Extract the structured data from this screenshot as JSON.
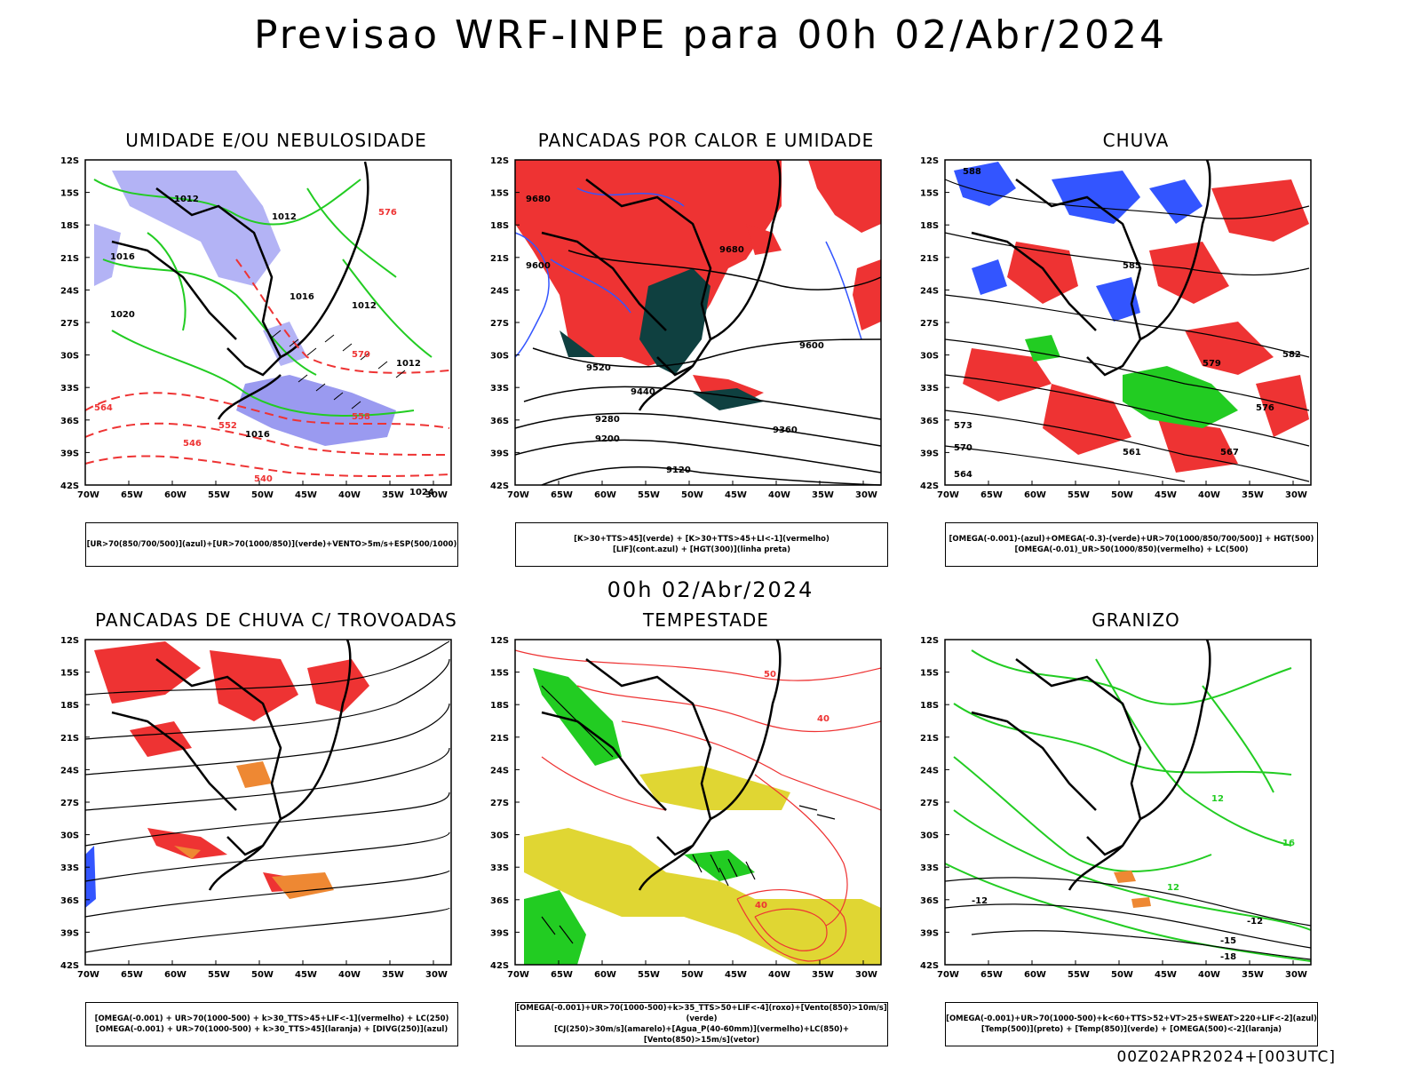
{
  "header": {
    "title": "Previsao WRF-INPE  para 00h 02/Abr/2024"
  },
  "middle_label": "00h 02/Abr/2024",
  "footer": "00Z02APR2024+[003UTC]",
  "axes": {
    "lat_ticks": [
      "12S",
      "15S",
      "18S",
      "21S",
      "24S",
      "27S",
      "30S",
      "33S",
      "36S",
      "39S",
      "42S"
    ],
    "lon_ticks": [
      "70W",
      "65W",
      "60W",
      "55W",
      "50W",
      "45W",
      "40W",
      "35W",
      "30W"
    ]
  },
  "panels": [
    {
      "title": "UMIDADE E/OU NEBULOSIDADE",
      "legend": [
        "[UR>70(850/700/500)](azul)+[UR>70(1000/850)](verde)+VENTO>5m/s+ESP(500/1000)"
      ],
      "labels": [
        "1012",
        "1012",
        "1016",
        "1020",
        "1016",
        "1012",
        "1012",
        "1016",
        "1024",
        "576",
        "570",
        "564",
        "558",
        "552",
        "546",
        "540"
      ]
    },
    {
      "title": "PANCADAS POR CALOR E UMIDADE",
      "legend": [
        "[K>30+TTS>45](verde) + [K>30+TTS>45+LI<-1](vermelho)",
        "[LIF](cont.azul) + [HGT(300)](linha preta)"
      ],
      "labels": [
        "9680",
        "9680",
        "9600",
        "9600",
        "9520",
        "9440",
        "9360",
        "9280",
        "9200",
        "9120"
      ]
    },
    {
      "title": "CHUVA",
      "legend": [
        "[OMEGA(-0.001)-(azul)+OMEGA(-0.3)-(verde)+UR>70(1000/850/700/500)] + HGT(500)",
        "[OMEGA(-0.01)_UR>50(1000/850)(vermelho) + LC(500)"
      ],
      "labels": [
        "588",
        "585",
        "582",
        "579",
        "576",
        "573",
        "570",
        "567",
        "564",
        "561"
      ]
    },
    {
      "title": "PANCADAS DE CHUVA C/ TROVOADAS",
      "legend": [
        "[OMEGA(-0.001) + UR>70(1000-500) + k>30_TTS>45+LIF<-1](vermelho) + LC(250)",
        "[OMEGA(-0.001) + UR>70(1000-500) + k>30_TTS>45](laranja) + [DIVG(250)](azul)"
      ],
      "labels": []
    },
    {
      "title": "TEMPESTADE",
      "legend": [
        "[OMEGA(-0.001)+UR>70(1000-500)+k>35_TTS>50+LIF<-4](roxo)+[Vento(850)>10m/s](verde)",
        "[CJ(250)>30m/s](amarelo)+[Agua_P(40-60mm)](vermelho)+LC(850)+[Vento(850)>15m/s](vetor)"
      ],
      "labels": [
        "40",
        "40",
        "50"
      ]
    },
    {
      "title": "GRANIZO",
      "legend": [
        "[OMEGA(-0.001)+UR>70(1000-500)+k<60+TTS>52+VT>25+SWEAT>220+LIF<-2](azul)",
        "[Temp(500)](preto) + [Temp(850)](verde) + [OMEGA(500)<-2](laranja)"
      ],
      "labels": [
        "-12",
        "-12",
        "-15",
        "-18",
        "12",
        "12",
        "16"
      ]
    }
  ],
  "colors": {
    "blue_fill": "#b3b3f5",
    "blue_line": "#3355ff",
    "green": "#22cc22",
    "red": "#ee3333",
    "dark_teal": "#0f4040",
    "yellow": "#e0d633",
    "orange": "#ee8833",
    "black": "#000000"
  }
}
